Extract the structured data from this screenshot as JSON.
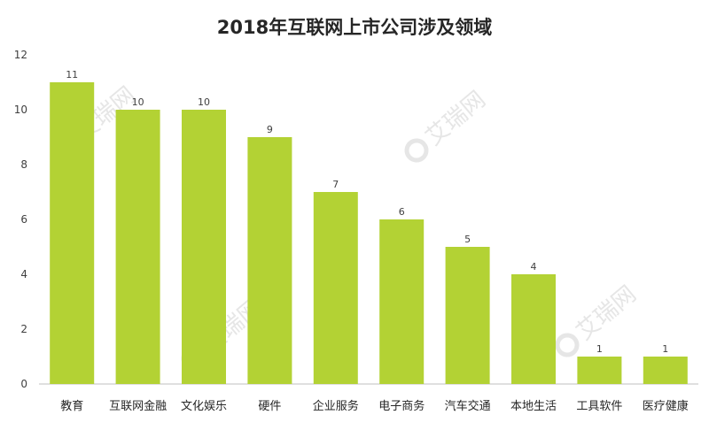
{
  "chart_data": {
    "type": "bar",
    "title": "2018年互联网上市公司涉及领域",
    "categories": [
      "教育",
      "互联网金融",
      "文化娱乐",
      "硬件",
      "企业服务",
      "电子商务",
      "汽车交通",
      "本地生活",
      "工具软件",
      "医疗健康"
    ],
    "values": [
      11,
      10,
      10,
      9,
      7,
      6,
      5,
      4,
      1,
      1
    ],
    "ylim": [
      0,
      12
    ],
    "yticks": [
      0,
      2,
      4,
      6,
      8,
      10,
      12
    ],
    "grid": false,
    "legend": "none",
    "bar_color": "#b3d234"
  },
  "watermark": {
    "text": "艾瑞网"
  }
}
